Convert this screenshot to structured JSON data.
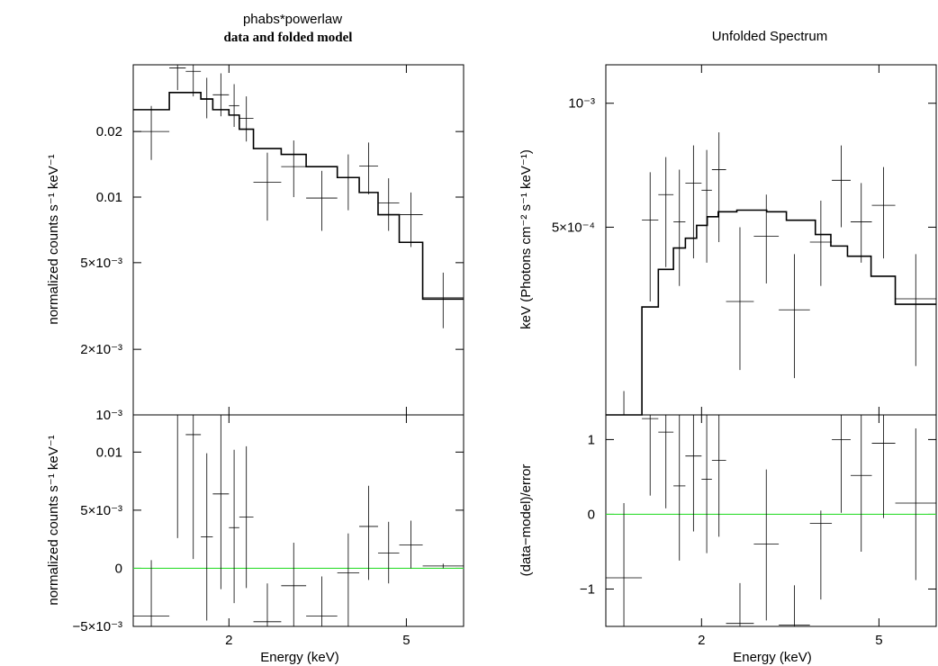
{
  "chart_data": [
    {
      "type": "step",
      "id": "left",
      "title": "phabs*powerlaw",
      "subtitle": "data and folded model",
      "xlabel": "Energy (keV)",
      "x_scale": "log",
      "xlim": [
        1.22,
        6.72
      ],
      "xticks": [
        {
          "v": 2,
          "label": "2"
        },
        {
          "v": 5,
          "label": "5"
        }
      ],
      "top": {
        "ylabel": "normalized counts s⁻¹ keV⁻¹",
        "y_scale": "log",
        "ylim": [
          0.001,
          0.0405
        ],
        "yticks": [
          {
            "v": 0.02,
            "label": "0.02"
          },
          {
            "v": 0.01,
            "label": "0.01"
          },
          {
            "v": 0.005,
            "label": "5×10⁻³"
          },
          {
            "v": 0.002,
            "label": "2×10⁻³"
          },
          {
            "v": 0.001,
            "label": "10⁻³"
          }
        ],
        "data": [
          {
            "x0": 1.22,
            "x1": 1.47,
            "y": 0.02,
            "lo": 0.0148,
            "hi": 0.0262
          },
          {
            "x0": 1.47,
            "x1": 1.6,
            "y": 0.0392,
            "lo": 0.031,
            "hi": 0.0415
          },
          {
            "x0": 1.6,
            "x1": 1.73,
            "y": 0.0378,
            "lo": 0.029,
            "hi": 0.0415
          },
          {
            "x0": 1.73,
            "x1": 1.84,
            "y": 0.0283,
            "lo": 0.023,
            "hi": 0.0353
          },
          {
            "x0": 1.84,
            "x1": 2.0,
            "y": 0.0295,
            "lo": 0.0235,
            "hi": 0.037
          },
          {
            "x0": 2.0,
            "x1": 2.11,
            "y": 0.0263,
            "lo": 0.021,
            "hi": 0.033
          },
          {
            "x0": 2.11,
            "x1": 2.27,
            "y": 0.023,
            "lo": 0.018,
            "hi": 0.029
          },
          {
            "x0": 2.27,
            "x1": 2.62,
            "y": 0.0117,
            "lo": 0.0078,
            "hi": 0.016
          },
          {
            "x0": 2.62,
            "x1": 2.98,
            "y": 0.0138,
            "lo": 0.01,
            "hi": 0.0182
          },
          {
            "x0": 2.98,
            "x1": 3.5,
            "y": 0.0099,
            "lo": 0.007,
            "hi": 0.0132
          },
          {
            "x0": 3.5,
            "x1": 3.92,
            "y": 0.0123,
            "lo": 0.0087,
            "hi": 0.0157
          },
          {
            "x0": 3.92,
            "x1": 4.32,
            "y": 0.0139,
            "lo": 0.0103,
            "hi": 0.0178
          },
          {
            "x0": 4.32,
            "x1": 4.82,
            "y": 0.0094,
            "lo": 0.007,
            "hi": 0.0122
          },
          {
            "x0": 4.82,
            "x1": 5.44,
            "y": 0.0083,
            "lo": 0.0059,
            "hi": 0.0105
          },
          {
            "x0": 5.44,
            "x1": 6.72,
            "y": 0.00345,
            "lo": 0.0025,
            "hi": 0.0045
          }
        ],
        "model": [
          {
            "x0": 1.22,
            "x1": 1.47,
            "y": 0.0252
          },
          {
            "x0": 1.47,
            "x1": 1.73,
            "y": 0.0302
          },
          {
            "x0": 1.73,
            "x1": 1.84,
            "y": 0.0282
          },
          {
            "x0": 1.84,
            "x1": 2.0,
            "y": 0.0252
          },
          {
            "x0": 2.0,
            "x1": 2.11,
            "y": 0.0238
          },
          {
            "x0": 2.11,
            "x1": 2.27,
            "y": 0.0205
          },
          {
            "x0": 2.27,
            "x1": 2.62,
            "y": 0.0167
          },
          {
            "x0": 2.62,
            "x1": 2.98,
            "y": 0.0157
          },
          {
            "x0": 2.98,
            "x1": 3.5,
            "y": 0.0138
          },
          {
            "x0": 3.5,
            "x1": 3.92,
            "y": 0.0123
          },
          {
            "x0": 3.92,
            "x1": 4.32,
            "y": 0.0105
          },
          {
            "x0": 4.32,
            "x1": 4.82,
            "y": 0.0083
          },
          {
            "x0": 4.82,
            "x1": 5.44,
            "y": 0.0062
          },
          {
            "x0": 5.44,
            "x1": 6.72,
            "y": 0.0034
          }
        ]
      },
      "bottom": {
        "ylabel": "normalized counts s⁻¹ keV⁻¹",
        "y_scale": "linear",
        "ylim": [
          -0.005,
          0.0132
        ],
        "zero_line": 0,
        "yticks": [
          {
            "v": 0.01,
            "label": "0.01"
          },
          {
            "v": 0.005,
            "label": "5×10⁻³"
          },
          {
            "v": 0,
            "label": "0"
          },
          {
            "v": -0.005,
            "label": "−5×10⁻³"
          }
        ],
        "data": [
          {
            "x0": 1.22,
            "x1": 1.47,
            "y": -0.0041,
            "lo": -0.0098,
            "hi": 0.0007
          },
          {
            "x0": 1.47,
            "x1": 1.6,
            "y": 0.0132,
            "lo": 0.0026,
            "hi": 0.0132
          },
          {
            "x0": 1.6,
            "x1": 1.73,
            "y": 0.0115,
            "lo": 0.0008,
            "hi": 0.0132
          },
          {
            "x0": 1.73,
            "x1": 1.84,
            "y": 0.0027,
            "lo": -0.0045,
            "hi": 0.0099
          },
          {
            "x0": 1.84,
            "x1": 2.0,
            "y": 0.0064,
            "lo": -0.0018,
            "hi": 0.0132
          },
          {
            "x0": 2.0,
            "x1": 2.11,
            "y": 0.0035,
            "lo": -0.003,
            "hi": 0.0102
          },
          {
            "x0": 2.11,
            "x1": 2.27,
            "y": 0.0044,
            "lo": -0.0017,
            "hi": 0.0105
          },
          {
            "x0": 2.27,
            "x1": 2.62,
            "y": -0.0046,
            "lo": -0.0098,
            "hi": -0.0013
          },
          {
            "x0": 2.62,
            "x1": 2.98,
            "y": -0.0015,
            "lo": -0.0098,
            "hi": 0.0022
          },
          {
            "x0": 2.98,
            "x1": 3.5,
            "y": -0.0041,
            "lo": -0.0098,
            "hi": -0.0007
          },
          {
            "x0": 3.5,
            "x1": 3.92,
            "y": -0.0004,
            "lo": -0.0055,
            "hi": 0.003
          },
          {
            "x0": 3.92,
            "x1": 4.32,
            "y": 0.0036,
            "lo": -0.001,
            "hi": 0.0071
          },
          {
            "x0": 4.32,
            "x1": 4.82,
            "y": 0.0013,
            "lo": -0.0013,
            "hi": 0.004
          },
          {
            "x0": 4.82,
            "x1": 5.44,
            "y": 0.002,
            "lo": 0,
            "hi": 0.0041
          },
          {
            "x0": 5.44,
            "x1": 6.72,
            "y": 0.0002,
            "lo": 0,
            "hi": 0.0004
          }
        ]
      }
    },
    {
      "type": "step",
      "id": "right",
      "title": "Unfolded Spectrum",
      "xlabel": "Energy (keV)",
      "x_scale": "log",
      "xlim": [
        1.22,
        6.72
      ],
      "xticks": [
        {
          "v": 2,
          "label": "2"
        },
        {
          "v": 5,
          "label": "5"
        }
      ],
      "top": {
        "ylabel": "keV (Photons cm⁻² s⁻¹ keV⁻¹)",
        "y_scale": "log",
        "ylim": [
          0.000175,
          0.00124
        ],
        "yticks": [
          {
            "v": 0.001,
            "label": "10⁻³"
          },
          {
            "v": 0.0005,
            "label": "5×10⁻⁴"
          }
        ],
        "data": [
          {
            "x0": 1.22,
            "x1": 1.47,
            "y": 0.000175,
            "lo": 0.000175,
            "hi": 0.0002
          },
          {
            "x0": 1.47,
            "x1": 1.6,
            "y": 0.00052,
            "lo": 0.00033,
            "hi": 0.00068
          },
          {
            "x0": 1.6,
            "x1": 1.73,
            "y": 0.0006,
            "lo": 0.0004,
            "hi": 0.00074
          },
          {
            "x0": 1.73,
            "x1": 1.84,
            "y": 0.000515,
            "lo": 0.00036,
            "hi": 0.00069
          },
          {
            "x0": 1.84,
            "x1": 2.0,
            "y": 0.00064,
            "lo": 0.00042,
            "hi": 0.00079
          },
          {
            "x0": 2.0,
            "x1": 2.11,
            "y": 0.000615,
            "lo": 0.00041,
            "hi": 0.00077
          },
          {
            "x0": 2.11,
            "x1": 2.27,
            "y": 0.00069,
            "lo": 0.00046,
            "hi": 0.00085
          },
          {
            "x0": 2.27,
            "x1": 2.62,
            "y": 0.00033,
            "lo": 0.000225,
            "hi": 0.0005
          },
          {
            "x0": 2.62,
            "x1": 2.98,
            "y": 0.000475,
            "lo": 0.000365,
            "hi": 0.0006
          },
          {
            "x0": 2.98,
            "x1": 3.5,
            "y": 0.000315,
            "lo": 0.000215,
            "hi": 0.00043
          },
          {
            "x0": 3.5,
            "x1": 3.92,
            "y": 0.00046,
            "lo": 0.00036,
            "hi": 0.00058
          },
          {
            "x0": 3.92,
            "x1": 4.32,
            "y": 0.00065,
            "lo": 0.0005,
            "hi": 0.00079
          },
          {
            "x0": 4.32,
            "x1": 4.82,
            "y": 0.000515,
            "lo": 0.00041,
            "hi": 0.00064
          },
          {
            "x0": 4.82,
            "x1": 5.44,
            "y": 0.000565,
            "lo": 0.00042,
            "hi": 0.0007
          },
          {
            "x0": 5.44,
            "x1": 6.72,
            "y": 0.000335,
            "lo": 0.00023,
            "hi": 0.00043
          }
        ],
        "model": [
          {
            "x0": 1.22,
            "x1": 1.47,
            "y": 0.000175
          },
          {
            "x0": 1.47,
            "x1": 1.6,
            "y": 0.00032
          },
          {
            "x0": 1.6,
            "x1": 1.73,
            "y": 0.000395
          },
          {
            "x0": 1.73,
            "x1": 1.84,
            "y": 0.000445
          },
          {
            "x0": 1.84,
            "x1": 1.95,
            "y": 0.00047
          },
          {
            "x0": 1.95,
            "x1": 2.06,
            "y": 0.000505
          },
          {
            "x0": 2.06,
            "x1": 2.18,
            "y": 0.00053
          },
          {
            "x0": 2.18,
            "x1": 2.4,
            "y": 0.000545
          },
          {
            "x0": 2.4,
            "x1": 2.8,
            "y": 0.00055
          },
          {
            "x0": 2.8,
            "x1": 3.1,
            "y": 0.000545
          },
          {
            "x0": 3.1,
            "x1": 3.6,
            "y": 0.00052
          },
          {
            "x0": 3.6,
            "x1": 3.9,
            "y": 0.00048
          },
          {
            "x0": 3.9,
            "x1": 4.25,
            "y": 0.00045
          },
          {
            "x0": 4.25,
            "x1": 4.8,
            "y": 0.000425
          },
          {
            "x0": 4.8,
            "x1": 5.44,
            "y": 0.00038
          },
          {
            "x0": 5.44,
            "x1": 6.72,
            "y": 0.000325
          }
        ]
      },
      "bottom": {
        "ylabel": "(data−model)/error",
        "y_scale": "linear",
        "ylim": [
          -1.5,
          1.33
        ],
        "zero_line": 0,
        "yticks": [
          {
            "v": 1,
            "label": "1"
          },
          {
            "v": 0,
            "label": "0"
          },
          {
            "v": -1,
            "label": "−1"
          }
        ],
        "data": [
          {
            "x0": 1.22,
            "x1": 1.47,
            "y": -0.85,
            "lo": -1.5,
            "hi": 0.15
          },
          {
            "x0": 1.47,
            "x1": 1.6,
            "y": 1.28,
            "lo": 0.25,
            "hi": 1.33
          },
          {
            "x0": 1.6,
            "x1": 1.73,
            "y": 1.1,
            "lo": 0.08,
            "hi": 1.33
          },
          {
            "x0": 1.73,
            "x1": 1.84,
            "y": 0.38,
            "lo": -0.62,
            "hi": 1.33
          },
          {
            "x0": 1.84,
            "x1": 2.0,
            "y": 0.78,
            "lo": -0.23,
            "hi": 1.33
          },
          {
            "x0": 2.0,
            "x1": 2.11,
            "y": 0.47,
            "lo": -0.52,
            "hi": 1.33
          },
          {
            "x0": 2.11,
            "x1": 2.27,
            "y": 0.72,
            "lo": -0.3,
            "hi": 1.33
          },
          {
            "x0": 2.27,
            "x1": 2.62,
            "y": -1.46,
            "lo": -1.5,
            "hi": -0.92
          },
          {
            "x0": 2.62,
            "x1": 2.98,
            "y": -0.4,
            "lo": -1.42,
            "hi": 0.6
          },
          {
            "x0": 2.98,
            "x1": 3.5,
            "y": -1.48,
            "lo": -1.5,
            "hi": -0.95
          },
          {
            "x0": 3.5,
            "x1": 3.92,
            "y": -0.12,
            "lo": -1.14,
            "hi": 0.05
          },
          {
            "x0": 3.92,
            "x1": 4.32,
            "y": 1.0,
            "lo": 0.02,
            "hi": 1.33
          },
          {
            "x0": 4.32,
            "x1": 4.82,
            "y": 0.52,
            "lo": -0.5,
            "hi": 1.33
          },
          {
            "x0": 4.82,
            "x1": 5.44,
            "y": 0.95,
            "lo": -0.05,
            "hi": 1.33
          },
          {
            "x0": 5.44,
            "x1": 6.72,
            "y": 0.15,
            "lo": -0.88,
            "hi": 1.15
          }
        ]
      }
    }
  ],
  "colors": {
    "data": "#000000",
    "model": "#000000",
    "zero_line": "#33dd33",
    "background": "#ffffff"
  }
}
